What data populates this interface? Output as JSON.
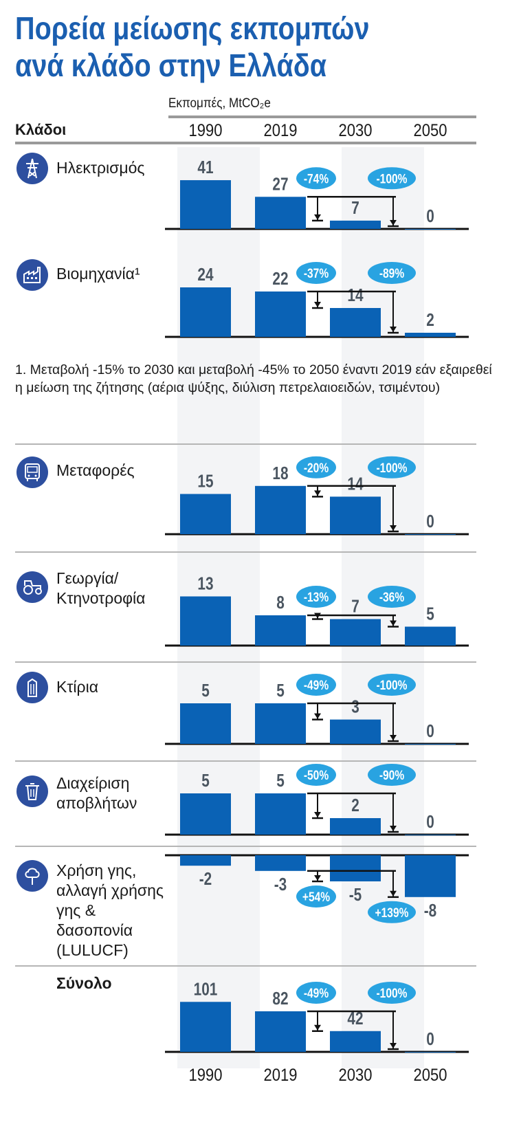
{
  "title": [
    "Πορεία μείωσης εκπομπών",
    "ανά κλάδο στην Ελλάδα"
  ],
  "unit_label": "Εκπομπές, MtCO₂e",
  "column_header": "Κλάδοι",
  "footnote": "1. Μεταβολή -15% το 2030 και μεταβολή -45% το 2050 έναντι 2019 εάν εξαιρεθεί η μείωση της ζήτησης (αέρια ψύξης, διύλιση πετρελαιοειδών, τσιμέντου)",
  "colors": {
    "bar": "#0a62b5",
    "badge": "#29a3e1",
    "title": "#1b5fb0",
    "icon": "#2d4f9f",
    "value": "#4a5560"
  },
  "chart_data": {
    "type": "bar",
    "title": "",
    "ylabel": "Εκπομπές, MtCO₂e",
    "categories": [
      "1990",
      "2019",
      "2030",
      "2050"
    ],
    "panels": [
      {
        "name": "Ηλεκτρισμός",
        "icon": "power-tower-icon",
        "values": [
          41,
          27,
          7,
          0
        ],
        "value_labels": [
          "41",
          "27",
          "7",
          "0"
        ],
        "changes_vs_2019": [
          "-74%",
          "-100%"
        ]
      },
      {
        "name": "Βιομηχανία¹",
        "icon": "factory-icon",
        "values": [
          24,
          22,
          14,
          2
        ],
        "value_labels": [
          "24",
          "22",
          "14",
          "2"
        ],
        "changes_vs_2019": [
          "-37%",
          "-89%"
        ]
      },
      {
        "name": "Μεταφορές",
        "icon": "bus-icon",
        "values": [
          15,
          18,
          14,
          0
        ],
        "value_labels": [
          "15",
          "18",
          "14",
          "0"
        ],
        "changes_vs_2019": [
          "-20%",
          "-100%"
        ]
      },
      {
        "name": "Γεωργία/ Κτηνοτροφία",
        "icon": "tractor-icon",
        "values": [
          13,
          8,
          7,
          5
        ],
        "value_labels": [
          "13",
          "8",
          "7",
          "5"
        ],
        "changes_vs_2019": [
          "-13%",
          "-36%"
        ]
      },
      {
        "name": "Κτίρια",
        "icon": "building-icon",
        "values": [
          5,
          5,
          3,
          0
        ],
        "value_labels": [
          "5",
          "5",
          "3",
          "0"
        ],
        "changes_vs_2019": [
          "-49%",
          "-100%"
        ]
      },
      {
        "name": "Διαχείριση αποβλήτων",
        "icon": "trash-bin-icon",
        "values": [
          5,
          5,
          2,
          0
        ],
        "value_labels": [
          "5",
          "5",
          "2",
          "0"
        ],
        "changes_vs_2019": [
          "-50%",
          "-90%"
        ]
      },
      {
        "name": "Χρήση γης, αλλαγή χρήσης γης & δασοπονία (LULUCF)",
        "icon": "tree-icon",
        "values": [
          -2,
          -3,
          -5,
          -8
        ],
        "value_labels": [
          "-2",
          "-3",
          "-5",
          "-8"
        ],
        "changes_vs_2019": [
          "+54%",
          "+139%"
        ]
      },
      {
        "name": "Σύνολο",
        "icon": "",
        "values": [
          101,
          82,
          42,
          0
        ],
        "value_labels": [
          "101",
          "82",
          "42",
          "0"
        ],
        "changes_vs_2019": [
          "-49%",
          "-100%"
        ]
      }
    ]
  }
}
